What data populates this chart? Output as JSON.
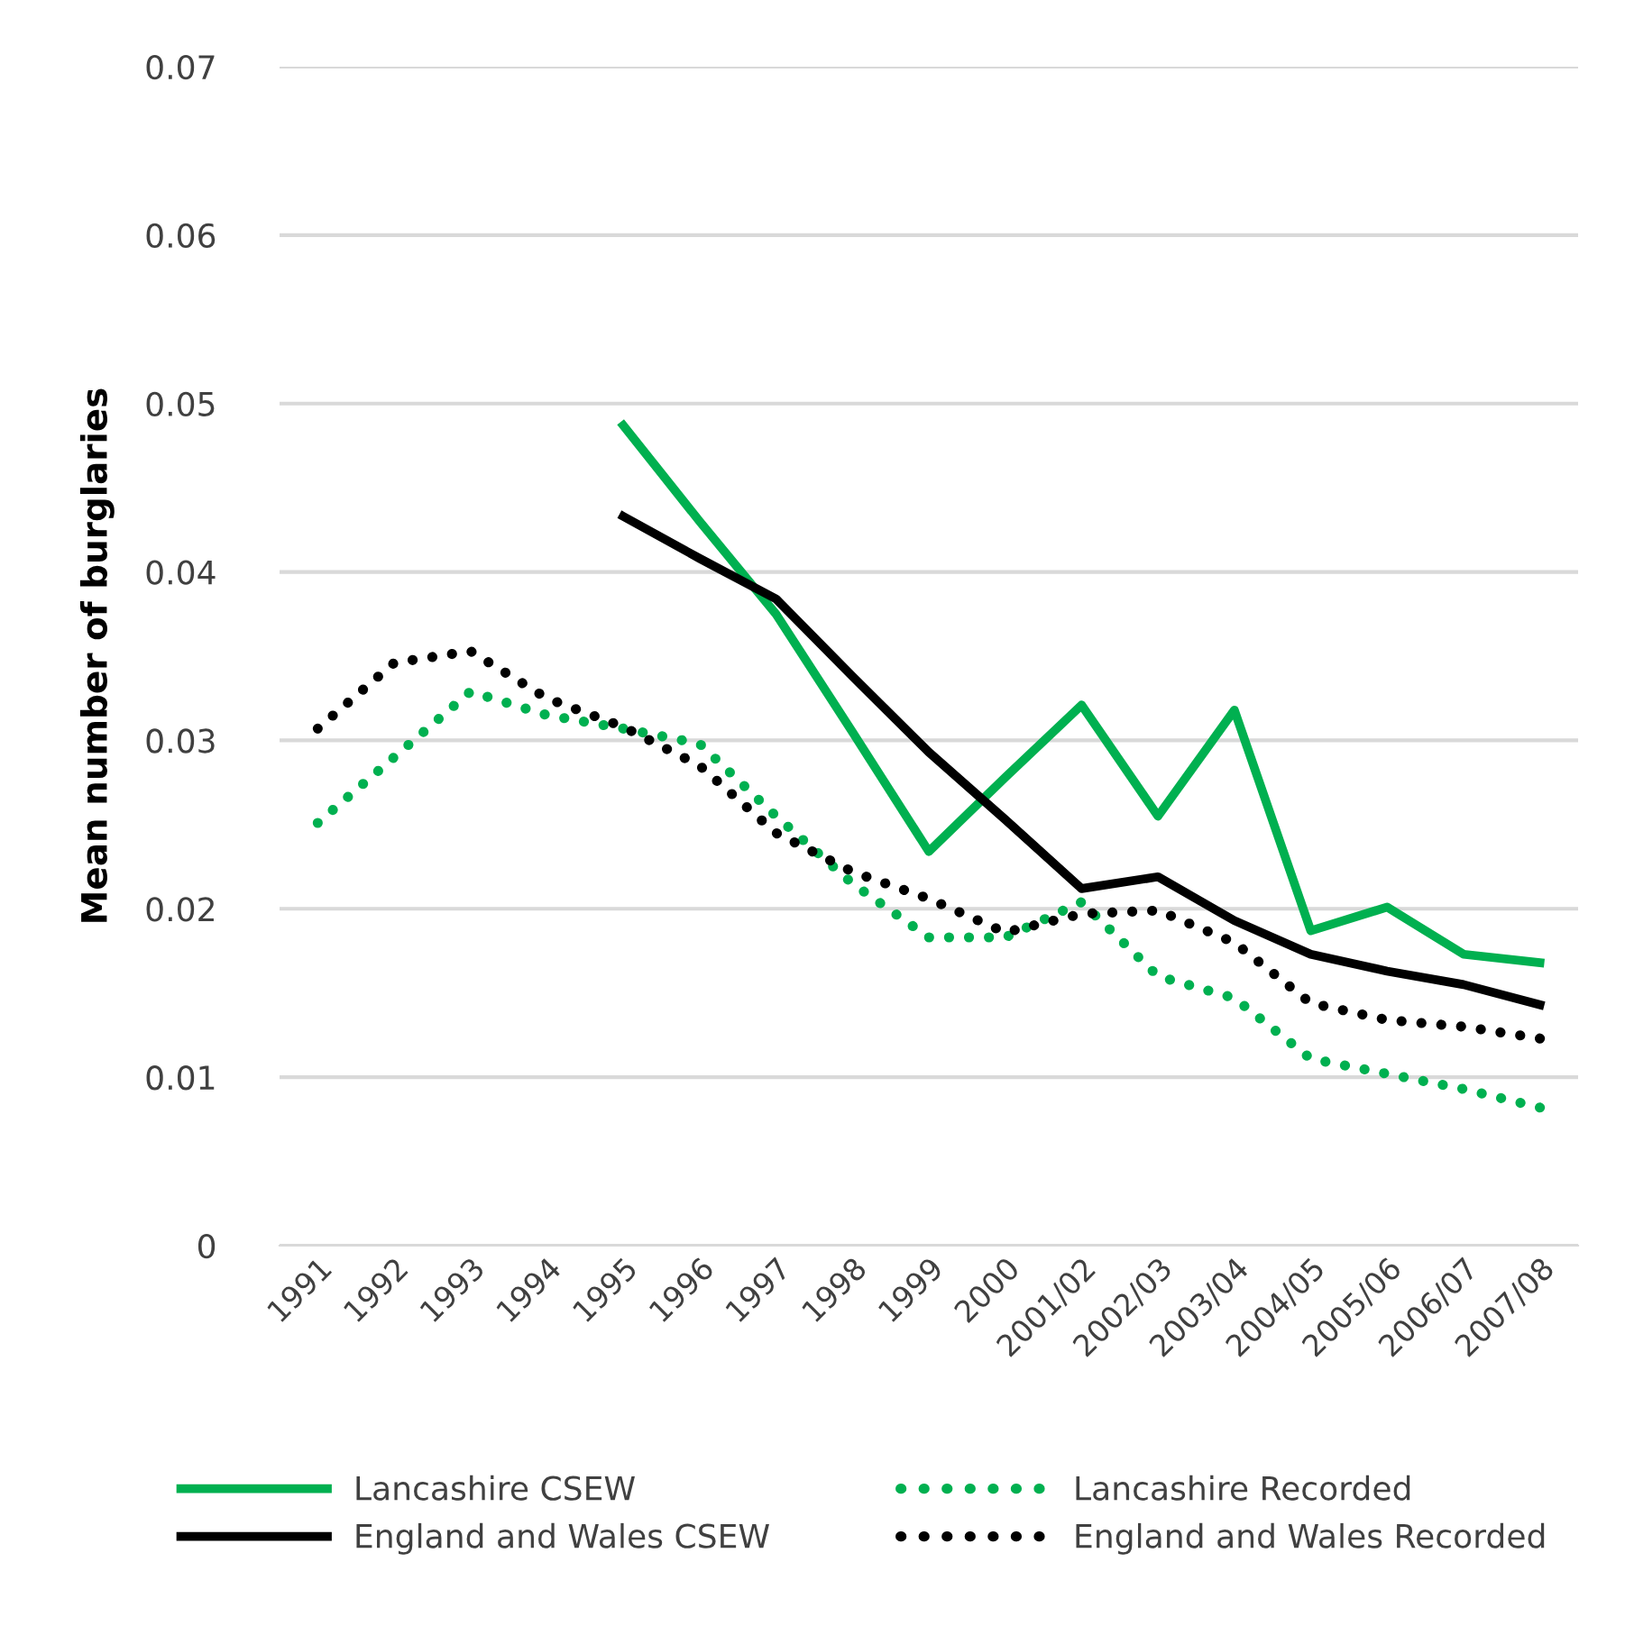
{
  "chart_data": {
    "type": "line",
    "ylabel": "Mean number of burglaries",
    "categories": [
      "1991",
      "1992",
      "1993",
      "1994",
      "1995",
      "1996",
      "1997",
      "1998",
      "1999",
      "2000",
      "2001/02",
      "2002/03",
      "2003/04",
      "2004/05",
      "2005/06",
      "2006/07",
      "2007/08"
    ],
    "series": [
      {
        "name": "Lancashire CSEW",
        "color": "#00b050",
        "line_style": "solid",
        "values": [
          null,
          null,
          null,
          null,
          0.0487,
          0.043,
          0.0375,
          0.0305,
          0.0234,
          0.0278,
          0.0321,
          0.0255,
          0.0318,
          0.0187,
          0.0201,
          0.0173,
          0.0168
        ]
      },
      {
        "name": "Lancashire Recorded",
        "color": "#00b050",
        "line_style": "dotted",
        "values": [
          0.0251,
          0.029,
          0.0329,
          0.0315,
          0.0307,
          0.0298,
          0.0255,
          0.0215,
          0.0183,
          0.0183,
          0.0204,
          0.016,
          0.0147,
          0.0111,
          0.0102,
          0.0093,
          0.0082
        ]
      },
      {
        "name": "England and Wales CSEW",
        "color": "#000000",
        "line_style": "solid",
        "values": [
          null,
          null,
          null,
          null,
          0.0433,
          0.0408,
          0.0384,
          0.0338,
          0.0293,
          0.0253,
          0.0212,
          0.0219,
          0.0193,
          0.0173,
          0.0163,
          0.0155,
          0.0143
        ]
      },
      {
        "name": "England and Wales Recorded",
        "color": "#000000",
        "line_style": "dotted",
        "values": [
          0.0307,
          0.0346,
          0.0353,
          0.0325,
          0.0308,
          0.0285,
          0.0245,
          0.0222,
          0.0206,
          0.0186,
          0.0197,
          0.0199,
          0.018,
          0.0144,
          0.0134,
          0.013,
          0.0123
        ]
      }
    ],
    "ylim": [
      0,
      0.07
    ],
    "yticks": [
      0,
      0.01,
      0.02,
      0.03,
      0.04,
      0.05,
      0.06,
      0.07
    ],
    "grid": "y",
    "legend": "bottom",
    "marker": "none"
  }
}
